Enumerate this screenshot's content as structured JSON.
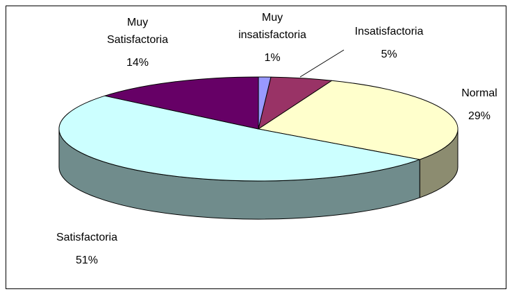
{
  "chart_data": {
    "type": "pie",
    "three_d": true,
    "start": "top",
    "direction": "clockwise",
    "categories": [
      "Muy insatisfactoria",
      "Insatisfactoria",
      "Normal",
      "Satisfactoria",
      "Muy Satisfactoria"
    ],
    "values": [
      1,
      5,
      29,
      51,
      14
    ],
    "value_labels": [
      "1%",
      "5%",
      "29%",
      "51%",
      "14%"
    ],
    "colors": [
      "#9999ff",
      "#993366",
      "#ffffcc",
      "#ccffff",
      "#660066"
    ]
  }
}
